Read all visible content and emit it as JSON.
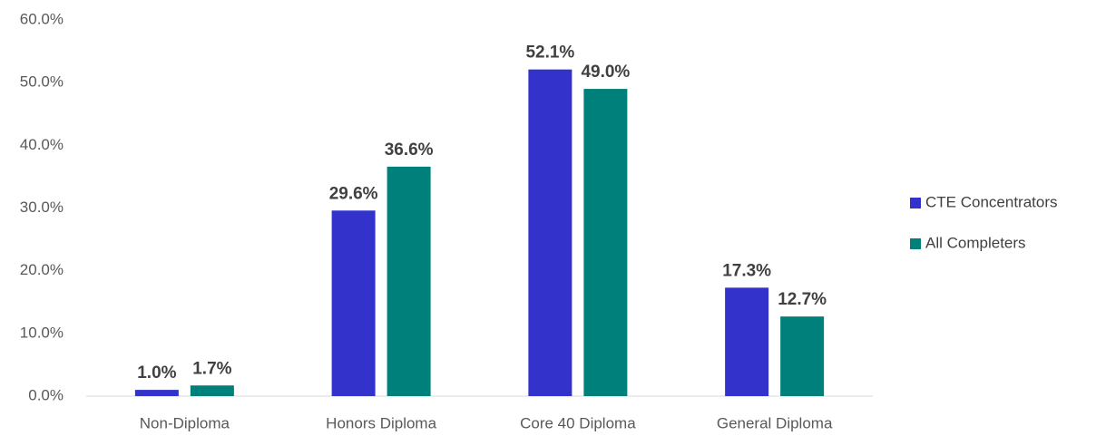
{
  "chart_data": {
    "type": "bar",
    "categories": [
      "Non-Diploma",
      "Honors Diploma",
      "Core 40 Diploma",
      "General Diploma"
    ],
    "series": [
      {
        "name": "CTE Concentrators",
        "color": "#3333cc",
        "values": [
          1.0,
          29.6,
          52.1,
          17.3
        ],
        "value_labels": [
          "1.0%",
          "29.6%",
          "52.1%",
          "17.3%"
        ]
      },
      {
        "name": "All Completers",
        "color": "#00807a",
        "values": [
          1.7,
          36.6,
          49.0,
          12.7
        ],
        "value_labels": [
          "1.7%",
          "36.6%",
          "49.0%",
          "12.7%"
        ]
      }
    ],
    "ylim": [
      0,
      60
    ],
    "yticks": [
      {
        "value": 0,
        "label": "0.0%"
      },
      {
        "value": 10,
        "label": "10.0%"
      },
      {
        "value": 20,
        "label": "20.0%"
      },
      {
        "value": 30,
        "label": "30.0%"
      },
      {
        "value": 40,
        "label": "40.0%"
      },
      {
        "value": 50,
        "label": "50.0%"
      },
      {
        "value": 60,
        "label": "60.0%"
      }
    ],
    "grid": false,
    "legend": "right"
  }
}
